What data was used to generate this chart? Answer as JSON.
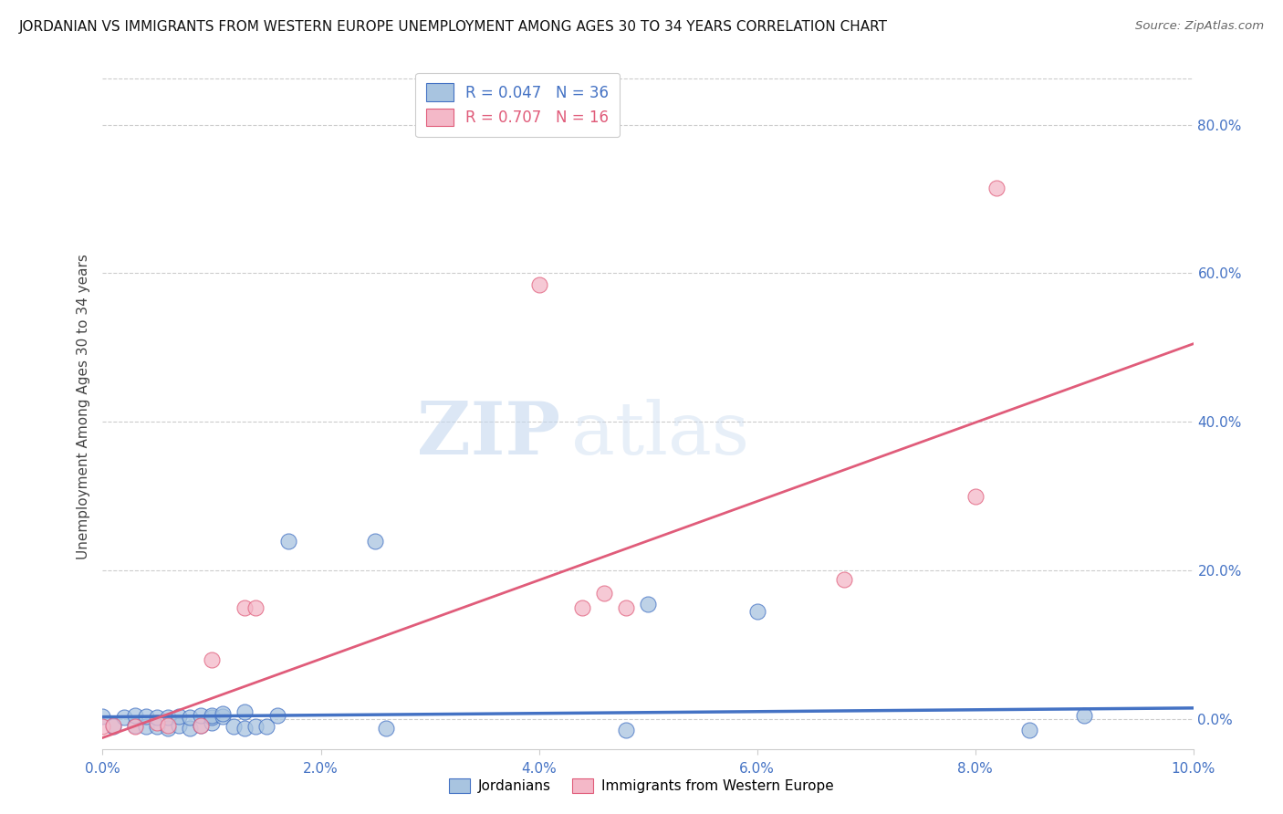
{
  "title": "JORDANIAN VS IMMIGRANTS FROM WESTERN EUROPE UNEMPLOYMENT AMONG AGES 30 TO 34 YEARS CORRELATION CHART",
  "source": "Source: ZipAtlas.com",
  "ylabel": "Unemployment Among Ages 30 to 34 years",
  "xlim": [
    0.0,
    0.1
  ],
  "ylim": [
    -0.04,
    0.88
  ],
  "xticks": [
    0.0,
    0.02,
    0.04,
    0.06,
    0.08,
    0.1
  ],
  "yticks_right": [
    0.0,
    0.2,
    0.4,
    0.6,
    0.8
  ],
  "blue_R": 0.047,
  "blue_N": 36,
  "pink_R": 0.707,
  "pink_N": 16,
  "blue_color": "#a8c4e0",
  "blue_edge_color": "#4472c4",
  "pink_color": "#f4b8c8",
  "pink_edge_color": "#e05c7a",
  "axis_color": "#4472c4",
  "blue_scatter_x": [
    0.0,
    0.001,
    0.002,
    0.003,
    0.003,
    0.004,
    0.004,
    0.005,
    0.005,
    0.006,
    0.006,
    0.007,
    0.007,
    0.008,
    0.008,
    0.009,
    0.009,
    0.01,
    0.01,
    0.01,
    0.011,
    0.011,
    0.012,
    0.013,
    0.013,
    0.014,
    0.015,
    0.016,
    0.017,
    0.025,
    0.026,
    0.048,
    0.05,
    0.06,
    0.085,
    0.09
  ],
  "blue_scatter_y": [
    0.004,
    -0.01,
    0.002,
    -0.008,
    0.005,
    -0.01,
    0.004,
    -0.01,
    0.002,
    -0.012,
    0.002,
    -0.008,
    0.004,
    -0.012,
    0.002,
    -0.008,
    0.005,
    -0.005,
    0.002,
    0.005,
    0.004,
    0.008,
    -0.01,
    0.01,
    -0.012,
    -0.01,
    -0.01,
    0.005,
    0.24,
    0.24,
    -0.012,
    -0.015,
    0.155,
    0.145,
    -0.015,
    0.005
  ],
  "pink_scatter_x": [
    0.0,
    0.001,
    0.003,
    0.005,
    0.006,
    0.009,
    0.01,
    0.013,
    0.014,
    0.04,
    0.044,
    0.046,
    0.048,
    0.068,
    0.08,
    0.082
  ],
  "pink_scatter_y": [
    -0.01,
    -0.008,
    -0.01,
    -0.005,
    -0.008,
    -0.008,
    0.08,
    0.15,
    0.15,
    0.585,
    0.15,
    0.17,
    0.15,
    0.188,
    0.3,
    0.715
  ],
  "blue_line_x": [
    0.0,
    0.1
  ],
  "blue_line_y": [
    0.003,
    0.015
  ],
  "pink_line_x": [
    0.0,
    0.1
  ],
  "pink_line_y": [
    -0.025,
    0.505
  ],
  "watermark_zip": "ZIP",
  "watermark_atlas": "atlas",
  "background_color": "#ffffff",
  "grid_color": "#cccccc",
  "legend_label_blue": "R = 0.047   N = 36",
  "legend_label_pink": "R = 0.707   N = 16",
  "footer_label_jordanians": "Jordanians",
  "footer_label_immigrants": "Immigrants from Western Europe"
}
